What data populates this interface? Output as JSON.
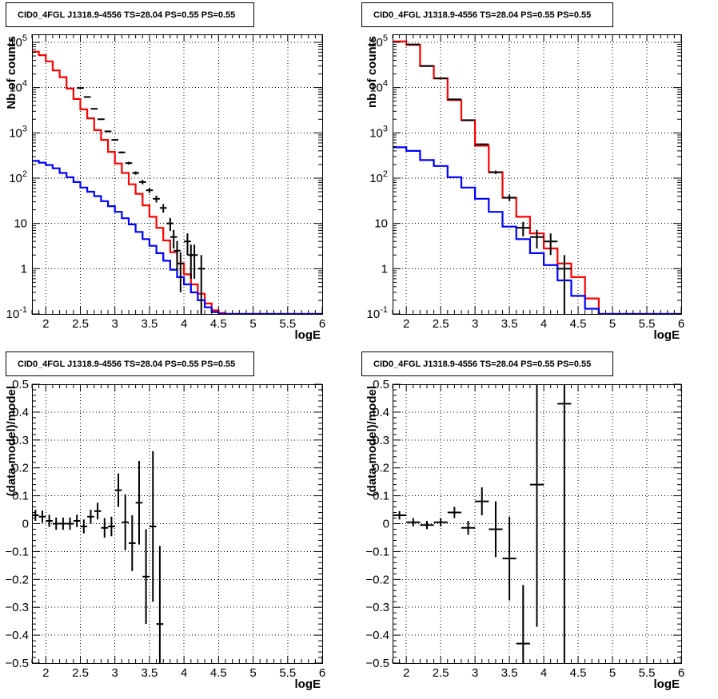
{
  "chart_data": [
    {
      "id": "top-left",
      "type": "histogram",
      "title": "CID0_4FGL J1318.9-4556 TS=28.04 PS=0.55 PS=0.55",
      "xlabel": "logE",
      "ylabel": "Nb of counts",
      "yscale": "log",
      "xlim": [
        1.8,
        6.0
      ],
      "ylim": [
        0.1,
        150000
      ],
      "x_ticks": [
        2,
        2.5,
        3,
        3.5,
        4,
        4.5,
        5,
        5.5,
        6
      ],
      "x_tick_labels": [
        "2",
        "2.5",
        "3",
        "3.5",
        "4",
        "4.5",
        "5",
        "5.5",
        "6"
      ],
      "y_ticks": [
        0.1,
        1,
        10,
        100,
        1000,
        10000,
        100000
      ],
      "y_tick_labels": [
        "10^-1",
        "1",
        "10",
        "10^2",
        "10^3",
        "10^4",
        "10^5"
      ],
      "grid": true,
      "series": [
        {
          "style": "step",
          "color": "#ff0000",
          "bin_edges": [
            1.8,
            1.9,
            2.0,
            2.1,
            2.2,
            2.3,
            2.4,
            2.5,
            2.6,
            2.7,
            2.8,
            2.9,
            3.0,
            3.1,
            3.2,
            3.3,
            3.4,
            3.5,
            3.6,
            3.7,
            3.8,
            3.9,
            4.0,
            4.1,
            4.2,
            4.3,
            4.4,
            4.5,
            4.6,
            6.0
          ],
          "values": [
            62000,
            52000,
            38000,
            24000,
            17000,
            9500,
            5600,
            3300,
            2100,
            1150,
            700,
            380,
            210,
            130,
            73,
            45,
            25,
            14,
            8,
            4.2,
            2.3,
            1.3,
            0.75,
            0.45,
            0.28,
            0.17,
            0.12,
            0.105,
            0.1
          ]
        },
        {
          "style": "step",
          "color": "#0000ff",
          "bin_edges": [
            1.8,
            1.9,
            2.0,
            2.1,
            2.2,
            2.3,
            2.4,
            2.5,
            2.6,
            2.7,
            2.8,
            2.9,
            3.0,
            3.1,
            3.2,
            3.3,
            3.4,
            3.5,
            3.6,
            3.7,
            3.8,
            3.9,
            4.0,
            4.1,
            4.2,
            4.3,
            4.4,
            4.5,
            4.6,
            6.0
          ],
          "values": [
            240,
            220,
            195,
            165,
            130,
            105,
            82,
            62,
            50,
            40,
            31,
            24,
            18,
            13,
            9.5,
            6.5,
            4.5,
            3.2,
            2.2,
            1.5,
            0.95,
            0.65,
            0.45,
            0.3,
            0.2,
            0.14,
            0.11,
            0.1,
            0.1
          ]
        },
        {
          "style": "errorbars",
          "color": "#000000",
          "x": [
            2.5,
            2.6,
            2.7,
            2.8,
            2.9,
            3.0,
            3.1,
            3.2,
            3.3,
            3.4,
            3.5,
            3.6,
            3.7,
            3.8,
            3.85,
            3.9,
            3.95,
            4.05,
            4.1,
            4.15,
            4.25
          ],
          "y": [
            9800,
            6200,
            3400,
            2000,
            1080,
            700,
            370,
            215,
            130,
            82,
            54,
            35,
            22,
            10,
            5,
            2.5,
            1.3,
            4,
            2,
            2,
            1
          ],
          "xerr": [
            0.05,
            0.05,
            0.05,
            0.05,
            0.05,
            0.05,
            0.05,
            0.05,
            0.05,
            0.05,
            0.05,
            0.05,
            0.05,
            0.05,
            0.05,
            0.05,
            0.05,
            0.05,
            0.05,
            0.05,
            0.05
          ],
          "yerr_low": [
            100,
            80,
            60,
            45,
            33,
            27,
            19,
            15,
            11,
            9,
            7,
            6,
            4.7,
            3.2,
            2.2,
            1.6,
            1.0,
            2.0,
            1.4,
            1.4,
            1.0
          ],
          "yerr_high": [
            100,
            80,
            60,
            45,
            33,
            27,
            19,
            15,
            11,
            9,
            7,
            6,
            4.7,
            3.2,
            2.2,
            1.6,
            1.0,
            2.0,
            1.4,
            1.4,
            1.0
          ]
        }
      ]
    },
    {
      "id": "top-right",
      "type": "histogram",
      "title": "CID0_4FGL J1318.9-4556 TS=28.04 PS=0.55 PS=0.55",
      "xlabel": "logE",
      "ylabel": "nb of counts",
      "yscale": "log",
      "xlim": [
        1.8,
        6.0
      ],
      "ylim": [
        0.1,
        150000
      ],
      "x_ticks": [
        2,
        2.5,
        3,
        3.5,
        4,
        4.5,
        5,
        5.5,
        6
      ],
      "x_tick_labels": [
        "2",
        "2.5",
        "3",
        "3.5",
        "4",
        "4.5",
        "5",
        "5.5",
        "6"
      ],
      "y_ticks": [
        0.1,
        1,
        10,
        100,
        1000,
        10000,
        100000
      ],
      "y_tick_labels": [
        "10^-1",
        "1",
        "10",
        "10^2",
        "10^3",
        "10^4",
        "10^5"
      ],
      "grid": true,
      "series": [
        {
          "style": "step",
          "color": "#ff0000",
          "bin_edges": [
            1.8,
            2.0,
            2.2,
            2.4,
            2.6,
            2.8,
            3.0,
            3.2,
            3.4,
            3.6,
            3.8,
            4.0,
            4.2,
            4.4,
            4.6,
            4.8,
            6.0
          ],
          "values": [
            105000,
            88000,
            30000,
            16000,
            5300,
            1900,
            520,
            135,
            37,
            14,
            6,
            2.8,
            1.3,
            0.65,
            0.22,
            0.1
          ]
        },
        {
          "style": "step",
          "color": "#0000ff",
          "bin_edges": [
            1.8,
            2.0,
            2.2,
            2.4,
            2.6,
            2.8,
            3.0,
            3.2,
            3.4,
            3.6,
            3.8,
            4.0,
            4.2,
            4.4,
            4.6,
            4.8,
            6.0
          ],
          "values": [
            480,
            400,
            250,
            185,
            105,
            62,
            35,
            18,
            8.5,
            4.5,
            2.2,
            1.2,
            0.55,
            0.25,
            0.13,
            0.1
          ]
        },
        {
          "style": "errorbars",
          "color": "#000000",
          "x": [
            2.1,
            2.3,
            2.5,
            2.7,
            2.9,
            3.1,
            3.3,
            3.5,
            3.7,
            3.9,
            4.1,
            4.3
          ],
          "y": [
            90000,
            30000,
            16000,
            5500,
            1900,
            560,
            135,
            37,
            8,
            5,
            4,
            1
          ],
          "xerr": [
            0.1,
            0.1,
            0.1,
            0.1,
            0.1,
            0.1,
            0.1,
            0.1,
            0.1,
            0.1,
            0.1,
            0.1
          ],
          "yerr_low": [
            300,
            170,
            126,
            74,
            44,
            24,
            12,
            6,
            2.8,
            2.2,
            2,
            1
          ],
          "yerr_high": [
            300,
            170,
            126,
            74,
            44,
            24,
            12,
            6,
            2.8,
            2.2,
            2,
            1
          ]
        }
      ]
    },
    {
      "id": "bottom-left",
      "type": "errorbar",
      "title": "CID0_4FGL J1318.9-4556 TS=28.04 PS=0.55 PS=0.55",
      "xlabel": "logE",
      "ylabel": "(data-model)/model",
      "yscale": "linear",
      "xlim": [
        1.8,
        6.0
      ],
      "ylim": [
        -0.5,
        0.5
      ],
      "x_ticks": [
        2,
        2.5,
        3,
        3.5,
        4,
        4.5,
        5,
        5.5,
        6
      ],
      "x_tick_labels": [
        "2",
        "2.5",
        "3",
        "3.5",
        "4",
        "4.5",
        "5",
        "5.5",
        "6"
      ],
      "y_ticks": [
        -0.5,
        -0.4,
        -0.3,
        -0.2,
        -0.1,
        0,
        0.1,
        0.2,
        0.3,
        0.4,
        0.5
      ],
      "y_tick_labels": [
        "−0.5",
        "−0.4",
        "−0.3",
        "−0.2",
        "−0.1",
        "0",
        "0.1",
        "0.2",
        "0.3",
        "0.4",
        "0.5"
      ],
      "grid": true,
      "series": [
        {
          "style": "errorbars",
          "color": "#000000",
          "x": [
            1.85,
            1.95,
            2.05,
            2.15,
            2.25,
            2.35,
            2.45,
            2.55,
            2.65,
            2.75,
            2.85,
            2.95,
            3.05,
            3.15,
            3.25,
            3.35,
            3.45,
            3.55,
            3.65
          ],
          "y": [
            0.03,
            0.025,
            0.01,
            0.0,
            0.0,
            0.0,
            0.01,
            -0.01,
            0.025,
            0.045,
            -0.015,
            -0.01,
            0.12,
            0.005,
            -0.07,
            0.075,
            -0.19,
            -0.01,
            -0.36
          ],
          "xerr": [
            0.05,
            0.05,
            0.05,
            0.05,
            0.05,
            0.05,
            0.05,
            0.05,
            0.05,
            0.05,
            0.05,
            0.05,
            0.05,
            0.05,
            0.05,
            0.05,
            0.05,
            0.05,
            0.05
          ],
          "yerr": [
            0.02,
            0.022,
            0.022,
            0.022,
            0.022,
            0.022,
            0.022,
            0.025,
            0.025,
            0.03,
            0.035,
            0.035,
            0.06,
            0.1,
            0.1,
            0.15,
            0.17,
            0.27,
            0.28
          ]
        }
      ]
    },
    {
      "id": "bottom-right",
      "type": "errorbar",
      "title": "CID0_4FGL J1318.9-4556 TS=28.04 PS=0.55 PS=0.55",
      "xlabel": "logE",
      "ylabel": "(data-model)/model",
      "yscale": "linear",
      "xlim": [
        1.8,
        6.0
      ],
      "ylim": [
        -0.5,
        0.5
      ],
      "x_ticks": [
        2,
        2.5,
        3,
        3.5,
        4,
        4.5,
        5,
        5.5,
        6
      ],
      "x_tick_labels": [
        "2",
        "2.5",
        "3",
        "3.5",
        "4",
        "4.5",
        "5",
        "5.5",
        "6"
      ],
      "y_ticks": [
        -0.5,
        -0.4,
        -0.3,
        -0.2,
        -0.1,
        0,
        0.1,
        0.2,
        0.3,
        0.4,
        0.5
      ],
      "y_tick_labels": [
        "−0.5",
        "−0.4",
        "−0.3",
        "−0.2",
        "−0.1",
        "0",
        "0.1",
        "0.2",
        "0.3",
        "0.4",
        "0.5"
      ],
      "grid": true,
      "series": [
        {
          "style": "errorbars",
          "color": "#000000",
          "x": [
            1.9,
            2.1,
            2.3,
            2.5,
            2.7,
            2.9,
            3.1,
            3.3,
            3.5,
            3.7,
            3.9,
            4.3
          ],
          "y": [
            0.03,
            0.005,
            -0.005,
            0.005,
            0.04,
            -0.015,
            0.08,
            -0.02,
            -0.125,
            -0.43,
            0.14,
            0.43
          ],
          "xerr": [
            0.1,
            0.1,
            0.1,
            0.1,
            0.1,
            0.1,
            0.1,
            0.1,
            0.1,
            0.1,
            0.1,
            0.1
          ],
          "yerr": [
            0.015,
            0.015,
            0.015,
            0.015,
            0.02,
            0.025,
            0.05,
            0.1,
            0.15,
            0.21,
            0.51,
            0.93
          ]
        }
      ]
    }
  ]
}
